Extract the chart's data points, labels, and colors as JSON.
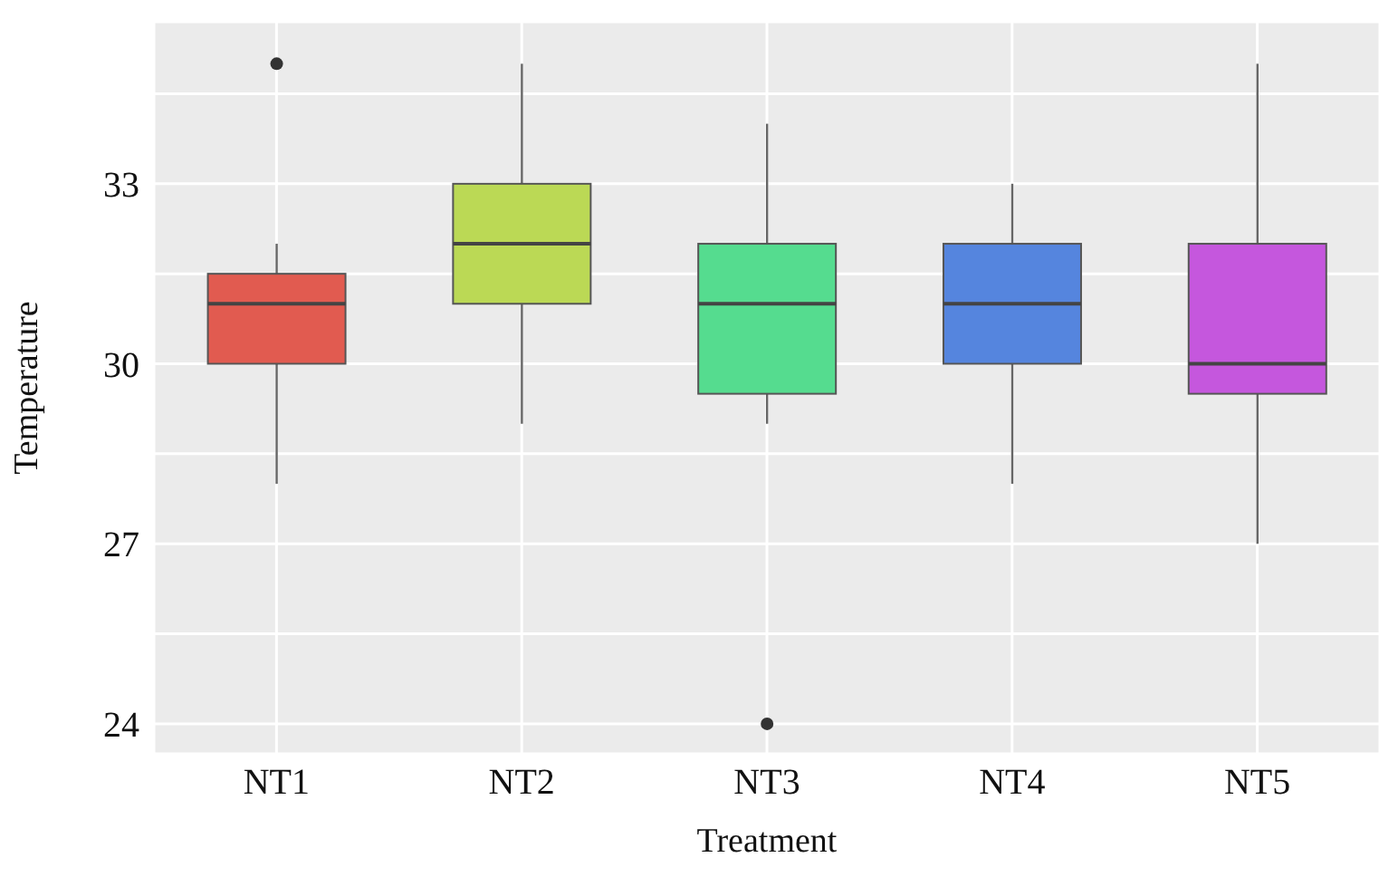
{
  "chart_data": {
    "type": "box",
    "xlabel": "Treatment",
    "ylabel": "Temperature",
    "categories": [
      "NT1",
      "NT2",
      "NT3",
      "NT4",
      "NT5"
    ],
    "colors": [
      "#e15b50",
      "#bbd955",
      "#55dc8f",
      "#5585de",
      "#c557dd"
    ],
    "boxes": [
      {
        "low": 28,
        "q1": 30,
        "median": 31,
        "q3": 31.5,
        "high": 32,
        "outliers": [
          35
        ]
      },
      {
        "low": 29,
        "q1": 31,
        "median": 32,
        "q3": 33,
        "high": 35
      },
      {
        "low": 29,
        "q1": 29.5,
        "median": 31,
        "q3": 32,
        "high": 34,
        "outliers": [
          24
        ]
      },
      {
        "low": 28,
        "q1": 30,
        "median": 31,
        "q3": 32,
        "high": 33
      },
      {
        "low": 27,
        "q1": 29.5,
        "median": 30,
        "q3": 32,
        "high": 35
      }
    ],
    "ylim": [
      23.5,
      35.7
    ],
    "yticks": [
      24,
      {
        "value": 25.5,
        "label": null
      },
      27,
      {
        "value": 28.5,
        "label": null
      },
      30,
      {
        "value": 31.5,
        "label": null
      },
      33,
      {
        "value": 34.5,
        "label": null
      }
    ],
    "grid": true,
    "legend": false
  }
}
